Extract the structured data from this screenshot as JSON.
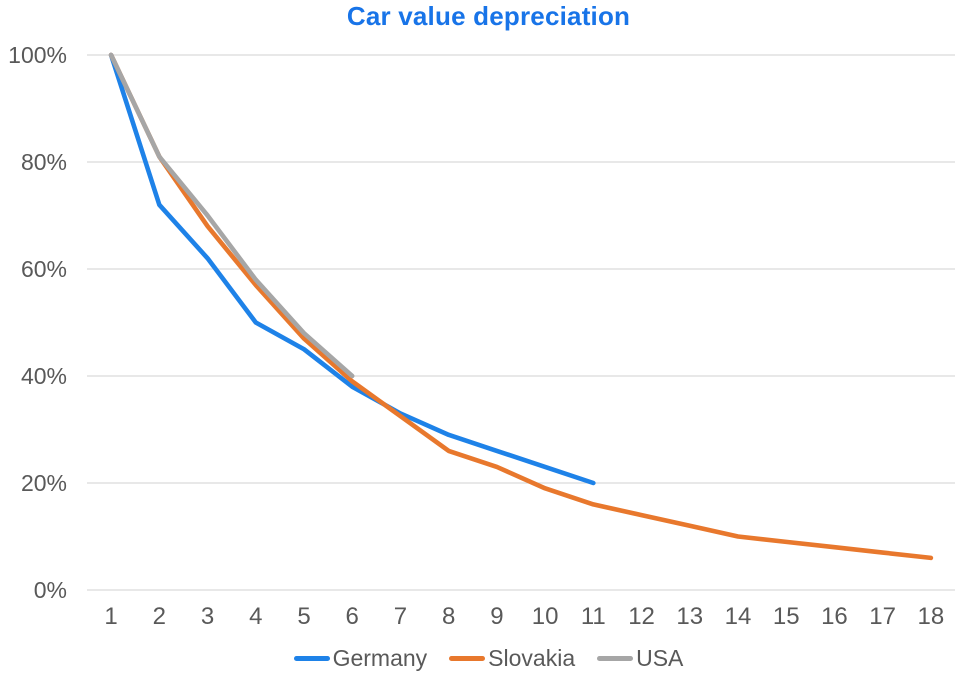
{
  "styles": {
    "title_color": "#1874E8",
    "axis_text_color": "#595959",
    "grid_color": "#DADADA",
    "background": "#FFFFFF"
  },
  "chart_data": {
    "type": "line",
    "title": "Car value depreciation",
    "xlabel": "",
    "ylabel": "",
    "x_ticks": [
      "1",
      "2",
      "3",
      "4",
      "5",
      "6",
      "7",
      "8",
      "9",
      "10",
      "11",
      "12",
      "13",
      "14",
      "15",
      "16",
      "17",
      "18"
    ],
    "y_ticks": [
      {
        "label": "0%",
        "value": 0
      },
      {
        "label": "20%",
        "value": 20
      },
      {
        "label": "40%",
        "value": 40
      },
      {
        "label": "60%",
        "value": 60
      },
      {
        "label": "80%",
        "value": 80
      },
      {
        "label": "100%",
        "value": 100
      }
    ],
    "ylim": [
      0,
      100
    ],
    "grid": "horizontal",
    "legend_position": "bottom",
    "series": [
      {
        "name": "Germany",
        "color": "#1E82E8",
        "start_x": 1,
        "values": [
          100,
          72,
          62,
          50,
          45,
          38,
          33,
          29,
          26,
          23,
          20
        ]
      },
      {
        "name": "Slovakia",
        "color": "#E8782D",
        "start_x": 1,
        "values": [
          100,
          81,
          68,
          57,
          47,
          39,
          32.5,
          26,
          23,
          19,
          16,
          14,
          12,
          10,
          9,
          8,
          7,
          6
        ]
      },
      {
        "name": "USA",
        "color": "#A6A6A6",
        "start_x": 1,
        "values": [
          100,
          81,
          70,
          58,
          48,
          40
        ]
      }
    ]
  }
}
